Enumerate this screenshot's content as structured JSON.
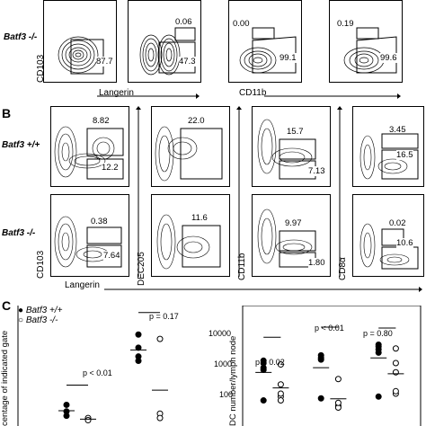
{
  "panels": {
    "A": {
      "row_label": "Batf3 -/-",
      "y_label": "CD103",
      "x_label_left": "Langerin",
      "x_label_right": "CD11b",
      "plots": [
        {
          "top_value": "",
          "right_value": "87.7"
        },
        {
          "top_value": "0.06",
          "right_value": "47.3"
        },
        {
          "top_value": "0.00",
          "right_value": "99.1"
        },
        {
          "top_value": "0.19",
          "right_value": "99.6"
        }
      ]
    },
    "B": {
      "letter": "B",
      "row_labels": [
        "Batf3 +/+",
        "Batf3 -/-"
      ],
      "x_label": "Langerin",
      "y_labels": [
        "CD103",
        "DEC205",
        "CD11b",
        "CD8α"
      ],
      "top_row": [
        {
          "upper": "8.82",
          "lower": "12.2"
        },
        {
          "upper": "22.0",
          "lower": ""
        },
        {
          "upper": "15.7",
          "lower": "7.13"
        },
        {
          "upper": "3.45",
          "lower": "16.5"
        }
      ],
      "bottom_row": [
        {
          "upper": "0.38",
          "lower": "7.64"
        },
        {
          "upper": "11.6",
          "lower": ""
        },
        {
          "upper": "9.97",
          "lower": "1.80"
        },
        {
          "upper": "0.02",
          "lower": "10.6"
        }
      ]
    },
    "C": {
      "letter": "C",
      "legend": [
        {
          "label": "Batf3 +/+",
          "marker": "filled-circle"
        },
        {
          "label": "Batf3 -/-",
          "marker": "open-circle"
        }
      ],
      "left_ylabel": "centage of indicated gate",
      "right_ylabel": "DC number/lymph node",
      "left_pvalues": [
        "p < 0.01",
        "p = 0.17"
      ],
      "right_pvalues": [
        "p = 0.02",
        "p < 0.01",
        "p = 0.80"
      ],
      "right_ticks": [
        "10000",
        "1000",
        "100"
      ]
    }
  },
  "chart_data": [
    {
      "type": "scatter",
      "title": "",
      "ylabel": "centage of indicated gate",
      "series": [
        {
          "name": "Batf3 +/+",
          "values": [
            [
              1,
              3
            ],
            [
              1,
              5
            ],
            [
              1,
              8
            ],
            [
              2,
              40
            ],
            [
              2,
              34
            ],
            [
              2,
              28
            ],
            [
              2,
              30
            ]
          ]
        },
        {
          "name": "Batf3 -/-",
          "values": [
            [
              1.3,
              2
            ],
            [
              1.3,
              1
            ],
            [
              2.3,
              4
            ],
            [
              2.3,
              2
            ],
            [
              2.3,
              38
            ]
          ]
        }
      ]
    },
    {
      "type": "scatter",
      "title": "",
      "ylabel": "DC number/lymph node",
      "yscale": "log",
      "ylim": [
        30,
        20000
      ],
      "series": [
        {
          "name": "Batf3 +/+",
          "values": [
            [
              1,
              1000
            ],
            [
              1,
              700
            ],
            [
              1,
              1200
            ],
            [
              1,
              600
            ],
            [
              1,
              60
            ],
            [
              2,
              1500
            ],
            [
              2,
              1800
            ],
            [
              2,
              1300
            ],
            [
              2,
              70
            ],
            [
              3,
              3500
            ],
            [
              3,
              2800
            ],
            [
              3,
              4000
            ],
            [
              3,
              2200
            ],
            [
              3,
              80
            ]
          ]
        },
        {
          "name": "Batf3 -/-",
          "values": [
            [
              1.3,
              900
            ],
            [
              1.3,
              200
            ],
            [
              1.3,
              80
            ],
            [
              1.3,
              60
            ],
            [
              1.3,
              100
            ],
            [
              2.3,
              300
            ],
            [
              2.3,
              40
            ],
            [
              2.3,
              35
            ],
            [
              2.3,
              50
            ],
            [
              3.3,
              3000
            ],
            [
              3.3,
              1000
            ],
            [
              3.3,
              500
            ],
            [
              3.3,
              100
            ],
            [
              3.3,
              120
            ]
          ]
        }
      ]
    }
  ]
}
